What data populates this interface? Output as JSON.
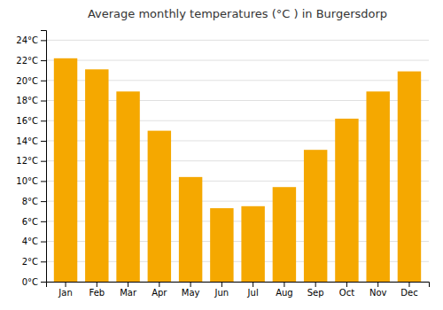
{
  "chart_data": {
    "type": "bar",
    "title": "Average monthly temperatures (°C ) in Burgersdorp",
    "categories": [
      "Jan",
      "Feb",
      "Mar",
      "Apr",
      "May",
      "Jun",
      "Jul",
      "Aug",
      "Sep",
      "Oct",
      "Nov",
      "Dec"
    ],
    "values": [
      22.2,
      21.1,
      18.9,
      15.0,
      10.4,
      7.3,
      7.5,
      9.4,
      13.1,
      16.2,
      18.9,
      20.9
    ],
    "color": "#F5A800",
    "ylim": [
      0,
      25
    ],
    "yticks": [
      {
        "value": 0,
        "label": "0°C"
      },
      {
        "value": 2,
        "label": "2°C"
      },
      {
        "value": 4,
        "label": "4°C"
      },
      {
        "value": 6,
        "label": "6°C"
      },
      {
        "value": 8,
        "label": "8°C"
      },
      {
        "value": 10,
        "label": "10°C"
      },
      {
        "value": 12,
        "label": "12°C"
      },
      {
        "value": 14,
        "label": "14°C"
      },
      {
        "value": 16,
        "label": "16°C"
      },
      {
        "value": 18,
        "label": "18°C"
      },
      {
        "value": 20,
        "label": "20°C"
      },
      {
        "value": 22,
        "label": "22°C"
      },
      {
        "value": 24,
        "label": "24°C"
      }
    ],
    "grid": true
  }
}
